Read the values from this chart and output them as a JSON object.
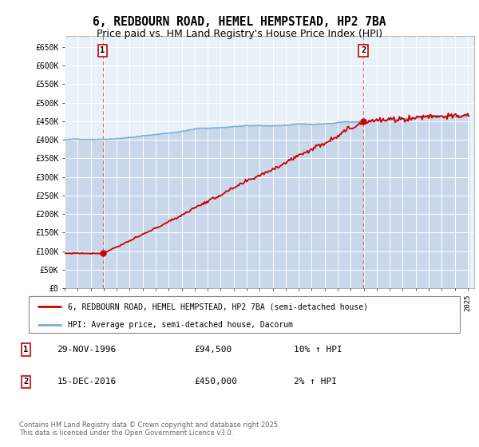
{
  "title": "6, REDBOURN ROAD, HEMEL HEMPSTEAD, HP2 7BA",
  "subtitle": "Price paid vs. HM Land Registry's House Price Index (HPI)",
  "title_fontsize": 10.5,
  "subtitle_fontsize": 9,
  "background_color": "#ffffff",
  "plot_bg_color": "#e8f0f8",
  "grid_color": "#ffffff",
  "legend_label_red": "6, REDBOURN ROAD, HEMEL HEMPSTEAD, HP2 7BA (semi-detached house)",
  "legend_label_blue": "HPI: Average price, semi-detached house, Dacorum",
  "footer": "Contains HM Land Registry data © Crown copyright and database right 2025.\nThis data is licensed under the Open Government Licence v3.0.",
  "red_color": "#cc0000",
  "blue_color": "#7aafd4",
  "blue_fill_color": "#c8d8ea",
  "annotation1_date": "29-NOV-1996",
  "annotation1_price": "£94,500",
  "annotation1_hpi": "10% ↑ HPI",
  "annotation2_date": "15-DEC-2016",
  "annotation2_price": "£450,000",
  "annotation2_hpi": "2% ↑ HPI",
  "sale1_x": 1996.92,
  "sale1_y": 94500,
  "sale2_x": 2016.97,
  "sale2_y": 450000,
  "xmin": 1994,
  "xmax": 2025.5,
  "ymin": 0,
  "ymax": 680000,
  "yticks": [
    0,
    50000,
    100000,
    150000,
    200000,
    250000,
    300000,
    350000,
    400000,
    450000,
    500000,
    550000,
    600000,
    650000
  ],
  "ytick_labels": [
    "£0",
    "£50K",
    "£100K",
    "£150K",
    "£200K",
    "£250K",
    "£300K",
    "£350K",
    "£400K",
    "£450K",
    "£500K",
    "£550K",
    "£600K",
    "£650K"
  ],
  "xtick_years": [
    1994,
    1995,
    1996,
    1997,
    1998,
    1999,
    2000,
    2001,
    2002,
    2003,
    2004,
    2005,
    2006,
    2007,
    2008,
    2009,
    2010,
    2011,
    2012,
    2013,
    2014,
    2015,
    2016,
    2017,
    2018,
    2019,
    2020,
    2021,
    2022,
    2023,
    2024,
    2025
  ]
}
